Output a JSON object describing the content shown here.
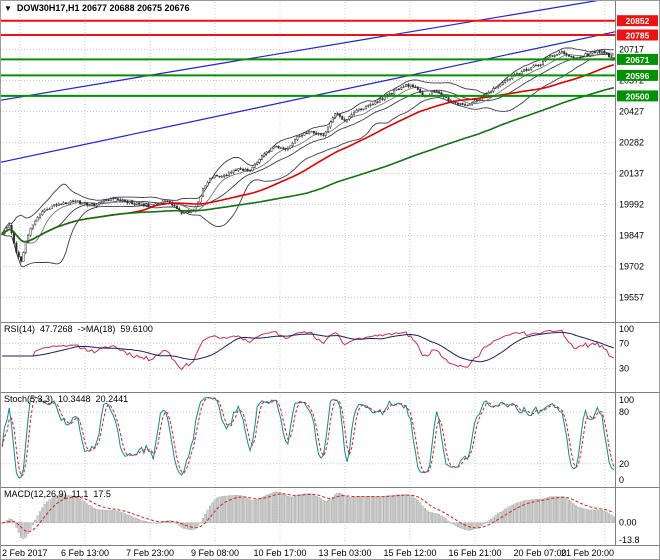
{
  "window": {
    "dropdown_icon": "▼",
    "title": "DOW30H17,H1 20677 20688 20675 20676"
  },
  "chart_data": {
    "type": "candlestick",
    "symbol": "DOW30H17",
    "period": "H1",
    "ohlc_display": {
      "open": 20677,
      "high": 20688,
      "low": 20675,
      "close": 20676
    },
    "x_labels": [
      "2 Feb 2017",
      "6 Feb 13:00",
      "7 Feb 23:00",
      "9 Feb 08:00",
      "10 Feb 17:00",
      "13 Feb 03:00",
      "15 Feb 12:00",
      "16 Feb 21:00",
      "20 Feb 07:00",
      "21 Feb 20:00"
    ],
    "y_axis": {
      "min": 19480,
      "max": 20930,
      "ticks": [
        20717,
        20572,
        20427,
        20282,
        20137,
        19992,
        19847,
        19702,
        19557
      ]
    },
    "levels": [
      {
        "price": 20852,
        "label": "20852",
        "color": "#ee1111"
      },
      {
        "price": 20785,
        "label": "20785",
        "color": "#ee1111"
      },
      {
        "price": 20671,
        "label": "20671",
        "color": "#009000"
      },
      {
        "price": 20596,
        "label": "20596",
        "color": "#009000"
      },
      {
        "price": 20500,
        "label": "20500",
        "color": "#009000"
      }
    ],
    "trendlines": [
      {
        "from_t": 0,
        "from_price": 20480,
        "to_t": 1,
        "to_price": 20960
      },
      {
        "from_t": 0,
        "from_price": 20190,
        "to_t": 1,
        "to_price": 20800
      }
    ],
    "bars": 260,
    "seed": 11,
    "volatility": 13,
    "wick": 10,
    "price_anchors": [
      [
        0.0,
        19858
      ],
      [
        0.012,
        19902
      ],
      [
        0.02,
        19798
      ],
      [
        0.03,
        19722
      ],
      [
        0.045,
        19878
      ],
      [
        0.065,
        19958
      ],
      [
        0.09,
        19996
      ],
      [
        0.12,
        20006
      ],
      [
        0.15,
        19988
      ],
      [
        0.18,
        20022
      ],
      [
        0.21,
        20002
      ],
      [
        0.24,
        19986
      ],
      [
        0.27,
        20012
      ],
      [
        0.295,
        19952
      ],
      [
        0.315,
        19968
      ],
      [
        0.33,
        20072
      ],
      [
        0.345,
        20128
      ],
      [
        0.365,
        20124
      ],
      [
        0.385,
        20160
      ],
      [
        0.405,
        20152
      ],
      [
        0.43,
        20232
      ],
      [
        0.445,
        20262
      ],
      [
        0.465,
        20256
      ],
      [
        0.485,
        20312
      ],
      [
        0.505,
        20332
      ],
      [
        0.525,
        20316
      ],
      [
        0.545,
        20422
      ],
      [
        0.56,
        20382
      ],
      [
        0.58,
        20432
      ],
      [
        0.605,
        20462
      ],
      [
        0.63,
        20502
      ],
      [
        0.655,
        20546
      ],
      [
        0.67,
        20552
      ],
      [
        0.69,
        20496
      ],
      [
        0.71,
        20526
      ],
      [
        0.73,
        20482
      ],
      [
        0.755,
        20456
      ],
      [
        0.775,
        20472
      ],
      [
        0.795,
        20522
      ],
      [
        0.815,
        20552
      ],
      [
        0.835,
        20592
      ],
      [
        0.855,
        20622
      ],
      [
        0.875,
        20642
      ],
      [
        0.895,
        20682
      ],
      [
        0.915,
        20706
      ],
      [
        0.935,
        20672
      ],
      [
        0.955,
        20692
      ],
      [
        0.975,
        20712
      ],
      [
        0.99,
        20692
      ],
      [
        1.0,
        20676
      ]
    ],
    "overlays": {
      "bollinger_period": 20,
      "bollinger_dev": 2,
      "sma_fast": 10,
      "sma_red": 55,
      "sma_green": 130
    },
    "indicators": {
      "rsi": {
        "label": "RSI(14)",
        "value": "47.7268",
        "ma_label": "->MA(18)",
        "ma_value": "59.6100",
        "period": 14,
        "ma_period": 18,
        "levels": [
          70,
          30
        ],
        "ticks": [
          "100",
          "70",
          "30"
        ]
      },
      "stoch": {
        "label": "Stoch(5,3,3)",
        "k_value": "10.3448",
        "d_value": "20.2441",
        "period": 5,
        "slow": 3,
        "signal": 3,
        "levels": [
          80,
          20
        ],
        "ticks": [
          "100",
          "80",
          "20",
          "0"
        ]
      },
      "macd": {
        "label": "MACD(12,26,9)",
        "value": "11.1",
        "signal_value": "17.5",
        "fast": 12,
        "slow": 26,
        "signal": 9,
        "ticks": [
          "0.00",
          "-13.8"
        ]
      }
    }
  },
  "colors": {
    "up": "#ffffff",
    "down": "#2b2b2b",
    "wick": "#2b2b2b",
    "grid": "#c9c9c9",
    "border": "#808080",
    "boll": "#3c3c52",
    "fast_ma": "#7a7a7a",
    "red_ma": "#e00000",
    "green_ma": "#167016",
    "trend": "#2020d0",
    "rsi": "#c83250",
    "rsi_ma": "#1c1c5e",
    "stoch_k": "#0e8c8c",
    "stoch_d": "#d02020",
    "macd_fill": "#d4d4d4",
    "macd_stroke": "#9a9a9a",
    "macd_signal": "#d02020"
  }
}
